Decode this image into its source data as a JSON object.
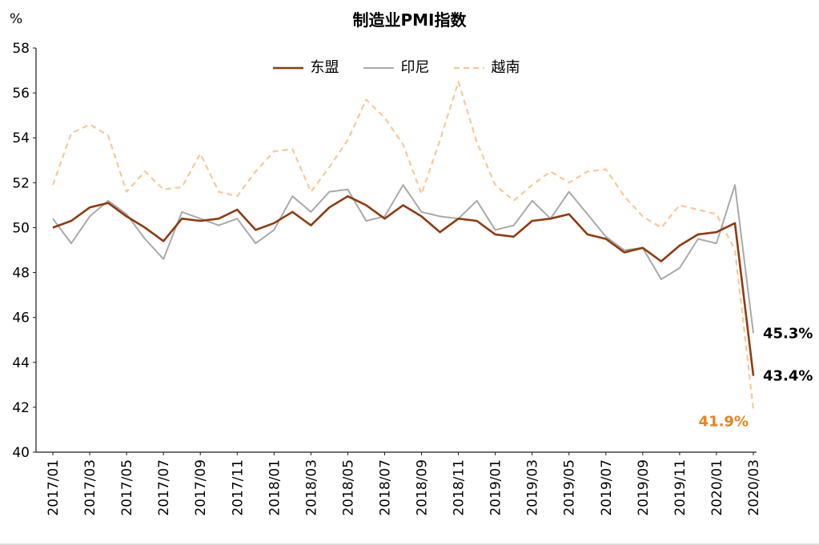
{
  "chart_data": {
    "type": "line",
    "title": "制造业PMI指数",
    "y_axis_unit_label": "%",
    "ylim": [
      40,
      58
    ],
    "y_ticks": [
      40,
      42,
      44,
      46,
      48,
      50,
      52,
      54,
      56,
      58
    ],
    "x_tick_step": 2,
    "axis_color": "#1a1a1a",
    "grid": false,
    "legend_position": "top-center",
    "x": [
      "2017/01",
      "2017/02",
      "2017/03",
      "2017/04",
      "2017/05",
      "2017/06",
      "2017/07",
      "2017/08",
      "2017/09",
      "2017/10",
      "2017/11",
      "2017/12",
      "2018/01",
      "2018/02",
      "2018/03",
      "2018/04",
      "2018/05",
      "2018/06",
      "2018/07",
      "2018/08",
      "2018/09",
      "2018/10",
      "2018/11",
      "2018/12",
      "2019/01",
      "2019/02",
      "2019/03",
      "2019/04",
      "2019/05",
      "2019/06",
      "2019/07",
      "2019/08",
      "2019/09",
      "2019/10",
      "2019/11",
      "2019/12",
      "2020/01",
      "2020/02",
      "2020/03"
    ],
    "series": [
      {
        "key": "asean",
        "name": "东盟",
        "color": "#8E3B10",
        "line_style": "solid",
        "values": [
          50.0,
          50.3,
          50.9,
          51.1,
          50.5,
          50.0,
          49.4,
          50.4,
          50.3,
          50.4,
          50.8,
          49.9,
          50.2,
          50.7,
          50.1,
          50.9,
          51.4,
          51.0,
          50.4,
          51.0,
          50.5,
          49.8,
          50.4,
          50.3,
          49.7,
          49.6,
          50.3,
          50.4,
          50.6,
          49.7,
          49.5,
          48.9,
          49.1,
          48.5,
          49.2,
          49.7,
          49.8,
          50.2,
          43.4
        ]
      },
      {
        "key": "indonesia",
        "name": "印尼",
        "color": "#A9A9A9",
        "line_style": "solid",
        "values": [
          50.4,
          49.3,
          50.5,
          51.2,
          50.6,
          49.5,
          48.6,
          50.7,
          50.4,
          50.1,
          50.4,
          49.3,
          49.9,
          51.4,
          50.7,
          51.6,
          51.7,
          50.3,
          50.5,
          51.9,
          50.7,
          50.5,
          50.4,
          51.2,
          49.9,
          50.1,
          51.2,
          50.4,
          51.6,
          50.6,
          49.6,
          49.0,
          49.1,
          47.7,
          48.2,
          49.5,
          49.3,
          51.9,
          45.3
        ]
      },
      {
        "key": "vietnam",
        "name": "越南",
        "color": "#F8C895",
        "line_style": "dashed",
        "values": [
          51.9,
          54.2,
          54.6,
          54.1,
          51.6,
          52.5,
          51.7,
          51.8,
          53.3,
          51.6,
          51.4,
          52.5,
          53.4,
          53.5,
          51.6,
          52.7,
          53.9,
          55.7,
          54.9,
          53.7,
          51.5,
          53.9,
          56.5,
          53.8,
          51.9,
          51.2,
          51.9,
          52.5,
          52.0,
          52.5,
          52.6,
          51.4,
          50.5,
          50.0,
          51.0,
          50.8,
          50.6,
          49.0,
          41.9
        ]
      }
    ],
    "annotations": [
      {
        "series_key": "indonesia",
        "text": "45.3%",
        "color": "#000000",
        "placement": "right"
      },
      {
        "series_key": "asean",
        "text": "43.4%",
        "color": "#000000",
        "placement": "right"
      },
      {
        "series_key": "vietnam",
        "text": "41.9%",
        "color": "#E8821E",
        "placement": "below-left"
      }
    ]
  }
}
